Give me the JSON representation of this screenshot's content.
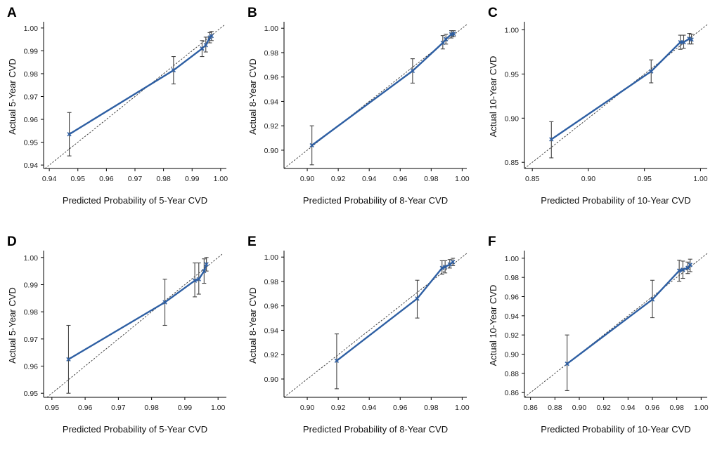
{
  "colors": {
    "calibration": "#2E5FA3",
    "reference": "#333333",
    "errorbar": "#444444",
    "axis": "#000000"
  },
  "chart_data": [
    {
      "type": "scatter",
      "panel_label": "A",
      "xlabel": "Predicted Probability of 5-Year CVD",
      "ylabel": "Actual 5-Year CVD",
      "xlim": [
        0.938,
        1.002
      ],
      "ylim": [
        0.9385,
        1.0015
      ],
      "xticks": [
        0.94,
        0.95,
        0.96,
        0.97,
        0.98,
        0.99,
        1.0
      ],
      "xtick_labels": [
        "0.94",
        "0.95",
        "0.96",
        "0.97",
        "0.98",
        "0.99",
        "1.00"
      ],
      "yticks": [
        0.94,
        0.95,
        0.96,
        0.97,
        0.98,
        0.99,
        1.0
      ],
      "ytick_labels": [
        "0.94",
        "0.95",
        "0.96",
        "0.97",
        "0.98",
        "0.99",
        "1.00"
      ],
      "reference_line": "y = x",
      "points": [
        {
          "x": 0.947,
          "y": 0.9535,
          "lo": 0.944,
          "hi": 0.963
        },
        {
          "x": 0.9835,
          "y": 0.9815,
          "lo": 0.9755,
          "hi": 0.9875
        },
        {
          "x": 0.9935,
          "y": 0.991,
          "lo": 0.9875,
          "hi": 0.9945
        },
        {
          "x": 0.9948,
          "y": 0.9925,
          "lo": 0.9895,
          "hi": 0.996
        },
        {
          "x": 0.9962,
          "y": 0.9958,
          "lo": 0.9935,
          "hi": 0.998
        },
        {
          "x": 0.9968,
          "y": 0.9965,
          "lo": 0.9945,
          "hi": 0.9985
        }
      ]
    },
    {
      "type": "scatter",
      "panel_label": "B",
      "xlabel": "Predicted Probability of 8-Year CVD",
      "ylabel": "Actual 8-Year CVD",
      "xlim": [
        0.885,
        1.003
      ],
      "ylim": [
        0.885,
        1.003
      ],
      "xticks": [
        0.9,
        0.92,
        0.94,
        0.96,
        0.98,
        1.0
      ],
      "xtick_labels": [
        "0.90",
        "0.92",
        "0.94",
        "0.96",
        "0.98",
        "1.00"
      ],
      "yticks": [
        0.9,
        0.92,
        0.94,
        0.96,
        0.98,
        1.0
      ],
      "ytick_labels": [
        "0.90",
        "0.92",
        "0.94",
        "0.96",
        "0.98",
        "1.00"
      ],
      "reference_line": "y = x",
      "points": [
        {
          "x": 0.903,
          "y": 0.904,
          "lo": 0.888,
          "hi": 0.92
        },
        {
          "x": 0.968,
          "y": 0.965,
          "lo": 0.955,
          "hi": 0.975
        },
        {
          "x": 0.9875,
          "y": 0.988,
          "lo": 0.983,
          "hi": 0.994
        },
        {
          "x": 0.9895,
          "y": 0.991,
          "lo": 0.987,
          "hi": 0.995
        },
        {
          "x": 0.993,
          "y": 0.995,
          "lo": 0.992,
          "hi": 0.998
        },
        {
          "x": 0.9945,
          "y": 0.9955,
          "lo": 0.993,
          "hi": 0.998
        }
      ]
    },
    {
      "type": "scatter",
      "panel_label": "C",
      "xlabel": "Predicted Probability of 10-Year CVD",
      "ylabel": "Actual 10-Year CVD",
      "xlim": [
        0.843,
        1.006
      ],
      "ylim": [
        0.843,
        1.006
      ],
      "xticks": [
        0.85,
        0.9,
        0.95,
        1.0
      ],
      "xtick_labels": [
        "0.85",
        "0.90",
        "0.95",
        "1.00"
      ],
      "yticks": [
        0.85,
        0.9,
        0.95,
        1.0
      ],
      "ytick_labels": [
        "0.85",
        "0.90",
        "0.95",
        "1.00"
      ],
      "reference_line": "y = x",
      "points": [
        {
          "x": 0.867,
          "y": 0.876,
          "lo": 0.855,
          "hi": 0.896
        },
        {
          "x": 0.956,
          "y": 0.953,
          "lo": 0.94,
          "hi": 0.966
        },
        {
          "x": 0.982,
          "y": 0.986,
          "lo": 0.978,
          "hi": 0.994
        },
        {
          "x": 0.985,
          "y": 0.986,
          "lo": 0.979,
          "hi": 0.994
        },
        {
          "x": 0.99,
          "y": 0.99,
          "lo": 0.984,
          "hi": 0.996
        },
        {
          "x": 0.992,
          "y": 0.989,
          "lo": 0.984,
          "hi": 0.995
        }
      ]
    },
    {
      "type": "scatter",
      "panel_label": "D",
      "xlabel": "Predicted Probability of 5-Year CVD",
      "ylabel": "Actual 5-Year CVD",
      "xlim": [
        0.9475,
        1.0025
      ],
      "ylim": [
        0.9485,
        1.0015
      ],
      "xticks": [
        0.95,
        0.96,
        0.97,
        0.98,
        0.99,
        1.0
      ],
      "xtick_labels": [
        "0.95",
        "0.96",
        "0.97",
        "0.98",
        "0.99",
        "1.00"
      ],
      "yticks": [
        0.95,
        0.96,
        0.97,
        0.98,
        0.99,
        1.0
      ],
      "ytick_labels": [
        "0.95",
        "0.96",
        "0.97",
        "0.98",
        "0.99",
        "1.00"
      ],
      "reference_line": "y = x",
      "points": [
        {
          "x": 0.955,
          "y": 0.9625,
          "lo": 0.95,
          "hi": 0.975
        },
        {
          "x": 0.984,
          "y": 0.9835,
          "lo": 0.975,
          "hi": 0.992
        },
        {
          "x": 0.993,
          "y": 0.9915,
          "lo": 0.9855,
          "hi": 0.998
        },
        {
          "x": 0.9942,
          "y": 0.992,
          "lo": 0.9865,
          "hi": 0.998
        },
        {
          "x": 0.9958,
          "y": 0.995,
          "lo": 0.9905,
          "hi": 0.9995
        },
        {
          "x": 0.9965,
          "y": 0.9975,
          "lo": 0.995,
          "hi": 1.0
        }
      ]
    },
    {
      "type": "scatter",
      "panel_label": "E",
      "xlabel": "Predicted Probability of 8-Year CVD",
      "ylabel": "Actual 8-Year CVD",
      "xlim": [
        0.885,
        1.003
      ],
      "ylim": [
        0.885,
        1.003
      ],
      "xticks": [
        0.9,
        0.92,
        0.94,
        0.96,
        0.98,
        1.0
      ],
      "xtick_labels": [
        "0.90",
        "0.92",
        "0.94",
        "0.96",
        "0.98",
        "1.00"
      ],
      "yticks": [
        0.9,
        0.92,
        0.94,
        0.96,
        0.98,
        1.0
      ],
      "ytick_labels": [
        "0.90",
        "0.92",
        "0.94",
        "0.96",
        "0.98",
        "1.00"
      ],
      "reference_line": "y = x",
      "points": [
        {
          "x": 0.919,
          "y": 0.915,
          "lo": 0.892,
          "hi": 0.937
        },
        {
          "x": 0.971,
          "y": 0.966,
          "lo": 0.95,
          "hi": 0.981
        },
        {
          "x": 0.987,
          "y": 0.991,
          "lo": 0.986,
          "hi": 0.997
        },
        {
          "x": 0.989,
          "y": 0.992,
          "lo": 0.987,
          "hi": 0.997
        },
        {
          "x": 0.992,
          "y": 0.994,
          "lo": 0.991,
          "hi": 0.998
        },
        {
          "x": 0.994,
          "y": 0.996,
          "lo": 0.993,
          "hi": 0.999
        }
      ]
    },
    {
      "type": "scatter",
      "panel_label": "F",
      "xlabel": "Predicted Probability of 10-Year CVD",
      "ylabel": "Actual 10-Year CVD",
      "xlim": [
        0.855,
        1.005
      ],
      "ylim": [
        0.855,
        1.005
      ],
      "xticks": [
        0.86,
        0.88,
        0.9,
        0.92,
        0.94,
        0.96,
        0.98,
        1.0
      ],
      "xtick_labels": [
        "0.86",
        "0.88",
        "0.90",
        "0.92",
        "0.94",
        "0.96",
        "0.98",
        "1.00"
      ],
      "yticks": [
        0.86,
        0.88,
        0.9,
        0.92,
        0.94,
        0.96,
        0.98,
        1.0
      ],
      "ytick_labels": [
        "0.86",
        "0.88",
        "0.90",
        "0.92",
        "0.94",
        "0.96",
        "0.98",
        "1.00"
      ],
      "reference_line": "y = x",
      "points": [
        {
          "x": 0.89,
          "y": 0.89,
          "lo": 0.862,
          "hi": 0.92
        },
        {
          "x": 0.96,
          "y": 0.957,
          "lo": 0.938,
          "hi": 0.977
        },
        {
          "x": 0.982,
          "y": 0.987,
          "lo": 0.976,
          "hi": 0.998
        },
        {
          "x": 0.985,
          "y": 0.988,
          "lo": 0.979,
          "hi": 0.997
        },
        {
          "x": 0.989,
          "y": 0.99,
          "lo": 0.984,
          "hi": 0.996
        },
        {
          "x": 0.991,
          "y": 0.993,
          "lo": 0.986,
          "hi": 0.999
        }
      ]
    }
  ]
}
